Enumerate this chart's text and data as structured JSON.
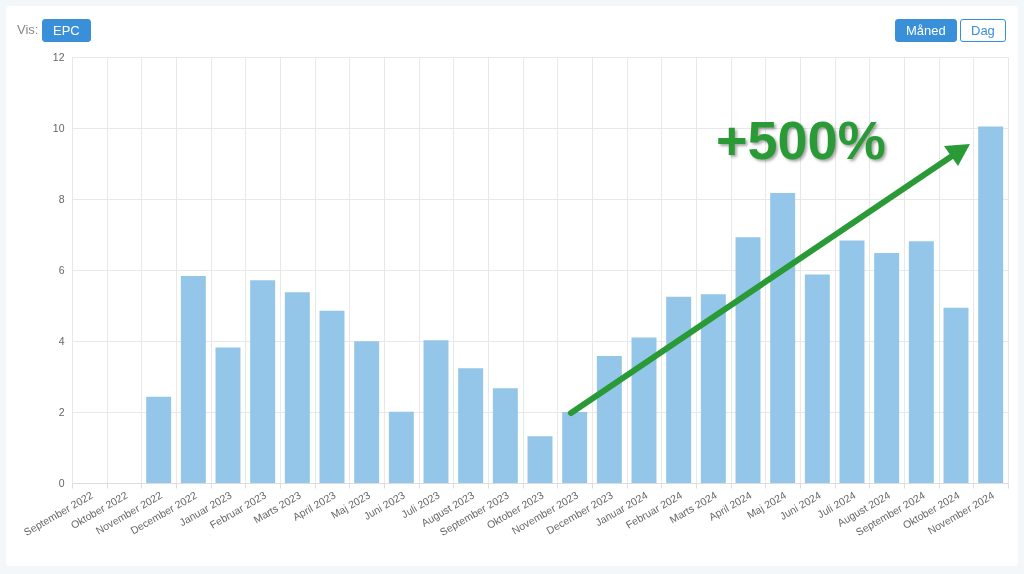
{
  "chart_data": {
    "type": "bar",
    "categories": [
      "September 2022",
      "Oktober 2022",
      "November 2022",
      "December 2022",
      "Januar 2023",
      "Februar 2023",
      "Marts 2023",
      "April 2023",
      "Maj 2023",
      "Juni 2023",
      "Juli 2023",
      "August 2023",
      "September 2023",
      "Oktober 2023",
      "November 2023",
      "December 2023",
      "Januar 2024",
      "Februar 2024",
      "Marts 2024",
      "April 2024",
      "Maj 2024",
      "Juni 2024",
      "Juli 2024",
      "August 2024",
      "September 2024",
      "Oktober 2024",
      "November 2024"
    ],
    "values": [
      0,
      0,
      2.43,
      5.83,
      3.82,
      5.71,
      5.37,
      4.85,
      3.99,
      2.01,
      4.02,
      3.23,
      2.67,
      1.32,
      2.0,
      3.58,
      4.1,
      5.25,
      5.32,
      6.92,
      8.17,
      5.87,
      6.83,
      6.48,
      6.81,
      4.94,
      10.04
    ],
    "color": "#93c6e8",
    "ylim": [
      0,
      12
    ],
    "yticks": [
      0,
      2,
      4,
      6,
      8,
      10,
      12
    ],
    "grid": true,
    "annotations": [
      "Vis:",
      "EPC",
      "Måned",
      "Dag",
      "+500%"
    ]
  }
}
